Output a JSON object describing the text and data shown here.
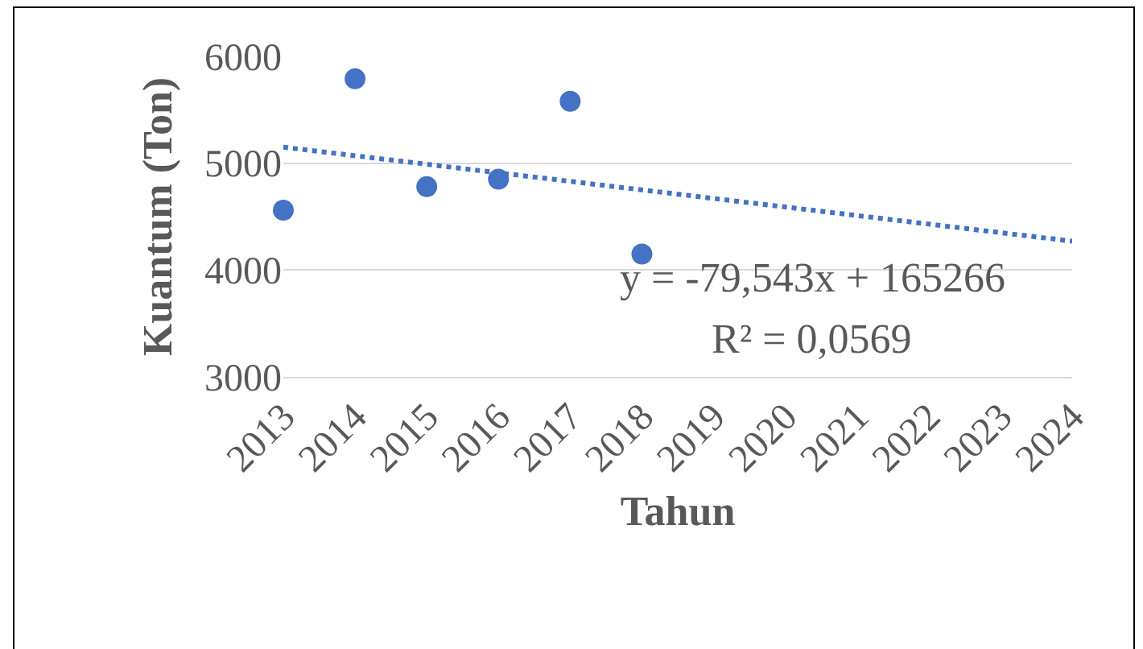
{
  "chart_data": {
    "type": "scatter",
    "xlabel": "Tahun",
    "ylabel": "Kuantum (Ton)",
    "x": [
      2013,
      2014,
      2015,
      2016,
      2017,
      2018
    ],
    "series": [
      {
        "color": "#4472c4",
        "values": [
          4560,
          5790,
          4780,
          4850,
          5580,
          4150
        ],
        "marker": "circle"
      },
      {
        "type": "line",
        "color": "#4472c4",
        "x": [
          2013,
          2024
        ],
        "values": [
          5150,
          4270
        ],
        "line_style": "dotted"
      }
    ],
    "xlim": [
      2013,
      2024
    ],
    "xticks": [
      2013,
      2014,
      2015,
      2016,
      2017,
      2018,
      2019,
      2020,
      2021,
      2022,
      2023,
      2024
    ],
    "ylim": [
      3000,
      6000
    ],
    "yticks": [
      3000,
      4000,
      5000,
      6000
    ],
    "grid": "y",
    "legend": false,
    "annotations": [
      "y = -79,543x + 165266",
      "R² = 0,0569"
    ]
  }
}
